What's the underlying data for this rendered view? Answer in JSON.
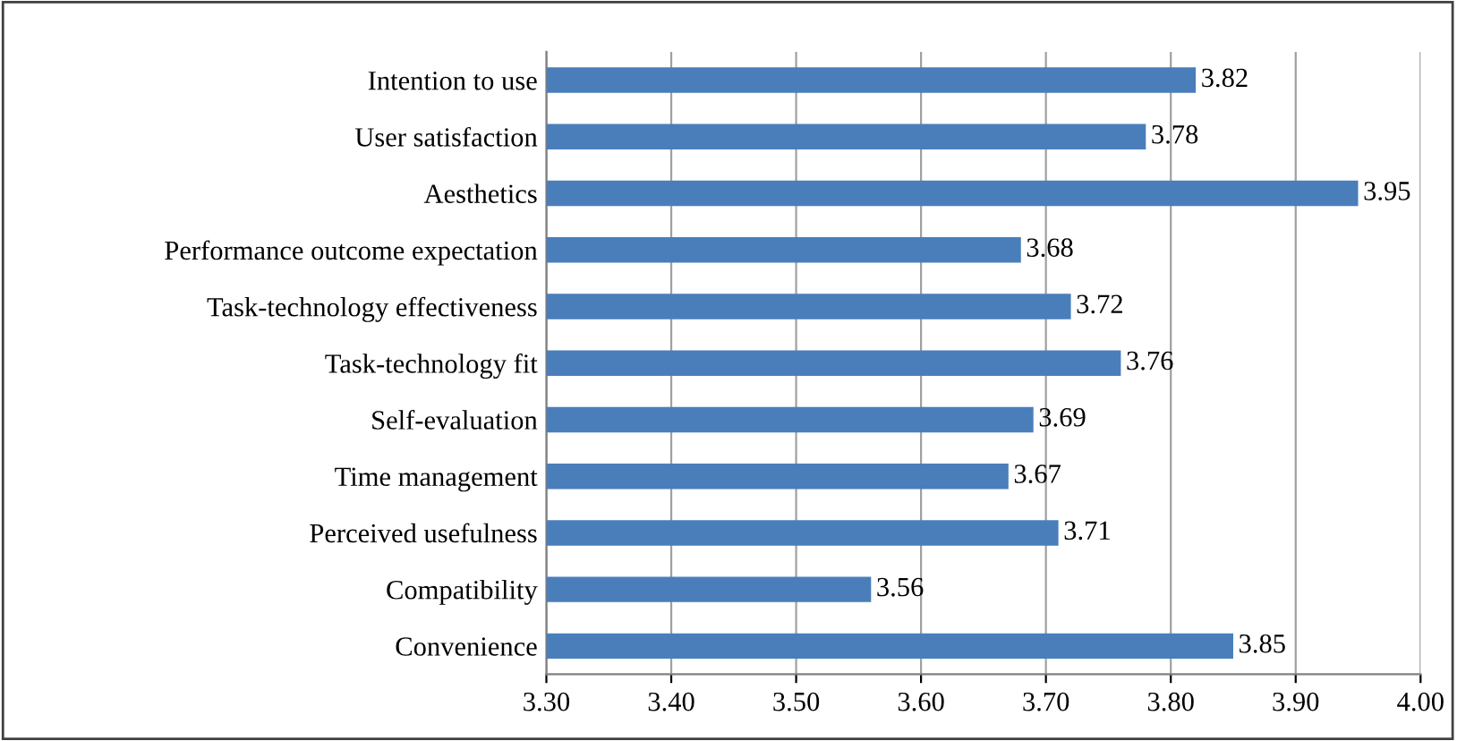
{
  "chart_data": {
    "type": "bar",
    "orientation": "horizontal",
    "categories": [
      "Intention to use",
      "User satisfaction",
      "Aesthetics",
      "Performance outcome expectation",
      "Task-technology effectiveness",
      "Task-technology fit",
      "Self-evaluation",
      "Time management",
      "Perceived usefulness",
      "Compatibility",
      "Convenience"
    ],
    "values": [
      3.82,
      3.78,
      3.95,
      3.68,
      3.72,
      3.76,
      3.69,
      3.67,
      3.71,
      3.56,
      3.85
    ],
    "color": "#4a7ebb",
    "xlim": [
      3.3,
      4.0
    ],
    "xticks": [
      {
        "value": 3.3,
        "label": "3.30"
      },
      {
        "value": 3.4,
        "label": "3.40"
      },
      {
        "value": 3.5,
        "label": "3.50"
      },
      {
        "value": 3.6,
        "label": "3.60"
      },
      {
        "value": 3.7,
        "label": "3.70"
      },
      {
        "value": 3.8,
        "label": "3.80"
      },
      {
        "value": 3.9,
        "label": "3.90"
      },
      {
        "value": 4.0,
        "label": "4.00"
      }
    ],
    "grid": "x",
    "data_labels": true,
    "legend": false
  }
}
